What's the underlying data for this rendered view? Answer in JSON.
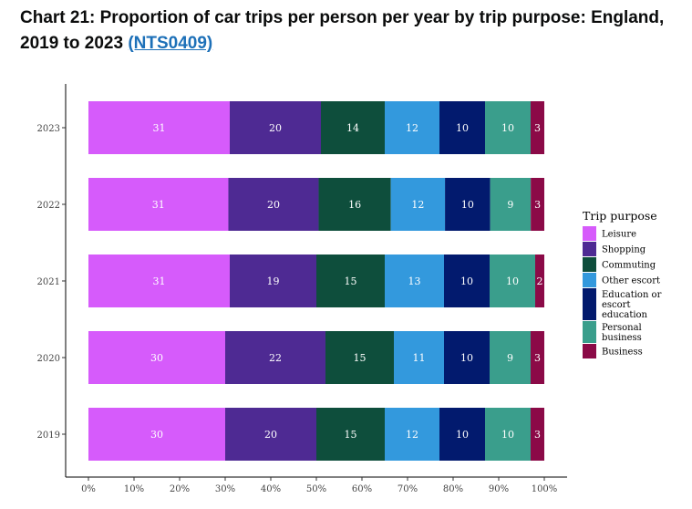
{
  "title": {
    "text": "Chart 21: Proportion of car trips per person per year by trip purpose: England, 2019 to 2023",
    "link": "(NTS0409)"
  },
  "chart_data": {
    "type": "bar",
    "orientation": "horizontal",
    "stacked": "percent",
    "title": "Chart 21: Proportion of car trips per person per year by trip purpose: England, 2019 to 2023",
    "categories": [
      "2023",
      "2022",
      "2021",
      "2020",
      "2019"
    ],
    "xlim": [
      0,
      100
    ],
    "x_ticks": [
      "0%",
      "10%",
      "20%",
      "30%",
      "40%",
      "50%",
      "60%",
      "70%",
      "80%",
      "90%",
      "100%"
    ],
    "grid": false,
    "legend": {
      "title": "Trip purpose",
      "position": "right"
    },
    "series": [
      {
        "name": "Leisure",
        "color": "#d65bfb",
        "values": [
          31,
          31,
          31,
          30,
          30
        ]
      },
      {
        "name": "Shopping",
        "color": "#4e2a93",
        "values": [
          20,
          20,
          19,
          22,
          20
        ]
      },
      {
        "name": "Commuting",
        "color": "#0e4e3c",
        "values": [
          14,
          16,
          15,
          15,
          15
        ]
      },
      {
        "name": "Other escort",
        "color": "#3399dd",
        "values": [
          12,
          12,
          13,
          11,
          12
        ]
      },
      {
        "name": "Education or escort education",
        "color": "#021a6e",
        "values": [
          10,
          10,
          10,
          10,
          10
        ]
      },
      {
        "name": "Personal business",
        "color": "#3a9e8c",
        "values": [
          10,
          9,
          10,
          9,
          10
        ]
      },
      {
        "name": "Business",
        "color": "#8b0a47",
        "values": [
          3,
          3,
          2,
          3,
          3
        ]
      }
    ]
  }
}
